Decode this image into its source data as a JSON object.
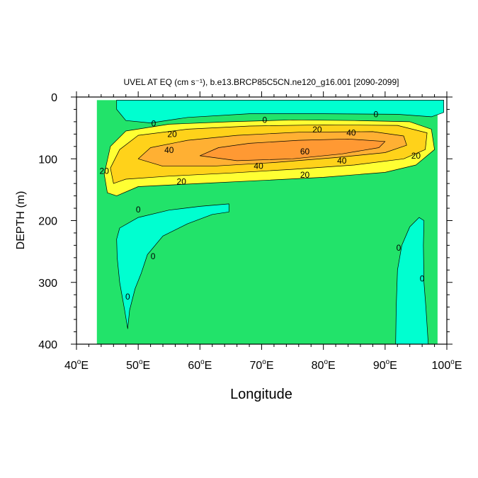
{
  "chart_data": {
    "type": "heatmap",
    "title": "UVEL AT EQ (cm s⁻¹), b.e13.BRCP85C5CN.ne120_g16.001 [2090-2099]",
    "xlabel": "Longitude",
    "ylabel": "DEPTH (m)",
    "xlim": [
      40,
      100
    ],
    "ylim": [
      400,
      0
    ],
    "x_ticks": [
      {
        "value": 40,
        "label": "40°E"
      },
      {
        "value": 50,
        "label": "50°E"
      },
      {
        "value": 60,
        "label": "60°E"
      },
      {
        "value": 70,
        "label": "70°E"
      },
      {
        "value": 80,
        "label": "80°E"
      },
      {
        "value": 90,
        "label": "90°E"
      },
      {
        "value": 100,
        "label": "100°E"
      }
    ],
    "y_ticks": [
      {
        "value": 0,
        "label": "0"
      },
      {
        "value": 100,
        "label": "100"
      },
      {
        "value": 200,
        "label": "200"
      },
      {
        "value": 300,
        "label": "300"
      },
      {
        "value": 400,
        "label": "400"
      }
    ],
    "contour_levels": [
      0,
      20,
      40,
      60
    ],
    "fill_colors": {
      "below_0": "#00ffd0",
      "0_to_20": "#22e36a",
      "20_to_30": "#ffff33",
      "30_to_40": "#ffd21a",
      "40_to_50": "#ffb033",
      "above_50": "#ff9933"
    },
    "regions": [
      {
        "name": "background",
        "level": "0_to_20",
        "polygon": [
          [
            43.3,
            5
          ],
          [
            98.5,
            5
          ],
          [
            98.5,
            400
          ],
          [
            43.3,
            400
          ]
        ]
      },
      {
        "name": "surface-westward",
        "level": "below_0",
        "polygon": [
          [
            46.5,
            5
          ],
          [
            63,
            5
          ],
          [
            76,
            5
          ],
          [
            99.5,
            5
          ],
          [
            99.5,
            25
          ],
          [
            97.5,
            32
          ],
          [
            92,
            28
          ],
          [
            80,
            27
          ],
          [
            68,
            27
          ],
          [
            58,
            33
          ],
          [
            52,
            42
          ],
          [
            48,
            38
          ],
          [
            46.5,
            20
          ]
        ]
      },
      {
        "name": "jet-outer",
        "level": "20_to_30",
        "polygon": [
          [
            45,
            155
          ],
          [
            44.5,
            125
          ],
          [
            45.5,
            80
          ],
          [
            48,
            55
          ],
          [
            55,
            44
          ],
          [
            65,
            40
          ],
          [
            75,
            37
          ],
          [
            85,
            38
          ],
          [
            94,
            40
          ],
          [
            97.5,
            52
          ],
          [
            98,
            85
          ],
          [
            95,
            110
          ],
          [
            90,
            122
          ],
          [
            80,
            130
          ],
          [
            70,
            135
          ],
          [
            60,
            140
          ],
          [
            50,
            145
          ],
          [
            46.5,
            160
          ]
        ]
      },
      {
        "name": "jet-20",
        "level": "30_to_40",
        "polygon": [
          [
            46,
            140
          ],
          [
            45.5,
            115
          ],
          [
            47,
            85
          ],
          [
            50,
            62
          ],
          [
            58,
            52
          ],
          [
            68,
            47
          ],
          [
            80,
            45
          ],
          [
            92,
            46
          ],
          [
            96.8,
            58
          ],
          [
            96.5,
            85
          ],
          [
            93,
            100
          ],
          [
            85,
            110
          ],
          [
            75,
            117
          ],
          [
            65,
            123
          ],
          [
            55,
            128
          ],
          [
            48,
            133
          ]
        ]
      },
      {
        "name": "jet-40",
        "level": "40_to_50",
        "polygon": [
          [
            50,
            100
          ],
          [
            52,
            82
          ],
          [
            58,
            70
          ],
          [
            66,
            62
          ],
          [
            76,
            57
          ],
          [
            88,
            56
          ],
          [
            93,
            63
          ],
          [
            93.5,
            78
          ],
          [
            90,
            90
          ],
          [
            82,
            98
          ],
          [
            72,
            106
          ],
          [
            62,
            112
          ],
          [
            54,
            112
          ]
        ]
      },
      {
        "name": "jet-core",
        "level": "above_50",
        "polygon": [
          [
            60,
            95
          ],
          [
            63,
            82
          ],
          [
            68,
            75
          ],
          [
            76,
            70
          ],
          [
            84,
            68
          ],
          [
            90,
            72
          ],
          [
            89,
            82
          ],
          [
            83,
            92
          ],
          [
            75,
            100
          ],
          [
            66,
            103
          ]
        ]
      },
      {
        "name": "deep-west-westward",
        "level": "below_0",
        "polygon": [
          [
            46.5,
            230
          ],
          [
            47,
            212
          ],
          [
            50,
            195
          ],
          [
            55,
            183
          ],
          [
            60,
            177
          ],
          [
            64.7,
            173
          ],
          [
            64.7,
            186
          ],
          [
            62,
            190
          ],
          [
            58,
            205
          ],
          [
            54,
            225
          ],
          [
            51.5,
            255
          ],
          [
            50.5,
            285
          ],
          [
            49.5,
            310
          ],
          [
            48.6,
            345
          ],
          [
            48.3,
            375
          ],
          [
            47.8,
            345
          ],
          [
            47,
            300
          ],
          [
            46.6,
            260
          ]
        ]
      },
      {
        "name": "deep-east-westward",
        "level": "below_0",
        "polygon": [
          [
            91.7,
            400
          ],
          [
            91.8,
            340
          ],
          [
            92,
            280
          ],
          [
            92.7,
            240
          ],
          [
            94,
            210
          ],
          [
            95.5,
            195
          ],
          [
            96.3,
            200
          ],
          [
            96.2,
            240
          ],
          [
            96.3,
            300
          ],
          [
            96.6,
            340
          ],
          [
            97,
            400
          ]
        ]
      }
    ],
    "contour_labels": [
      {
        "text": "0",
        "lon": 70.5,
        "depth": 37
      },
      {
        "text": "0",
        "lon": 88.5,
        "depth": 28
      },
      {
        "text": "0",
        "lon": 52.5,
        "depth": 43
      },
      {
        "text": "20",
        "lon": 55.5,
        "depth": 60
      },
      {
        "text": "20",
        "lon": 79,
        "depth": 53
      },
      {
        "text": "40",
        "lon": 55,
        "depth": 86
      },
      {
        "text": "40",
        "lon": 84.5,
        "depth": 58
      },
      {
        "text": "60",
        "lon": 77,
        "depth": 88
      },
      {
        "text": "40",
        "lon": 69.5,
        "depth": 112
      },
      {
        "text": "40",
        "lon": 83,
        "depth": 103
      },
      {
        "text": "20",
        "lon": 95,
        "depth": 95
      },
      {
        "text": "20",
        "lon": 44.5,
        "depth": 120
      },
      {
        "text": "20",
        "lon": 57,
        "depth": 137
      },
      {
        "text": "20",
        "lon": 77,
        "depth": 126
      },
      {
        "text": "0",
        "lon": 50,
        "depth": 182
      },
      {
        "text": "0",
        "lon": 52.4,
        "depth": 258
      },
      {
        "text": "0",
        "lon": 48.3,
        "depth": 323
      },
      {
        "text": "0",
        "lon": 92.2,
        "depth": 244
      },
      {
        "text": "0",
        "lon": 96,
        "depth": 294
      }
    ]
  }
}
